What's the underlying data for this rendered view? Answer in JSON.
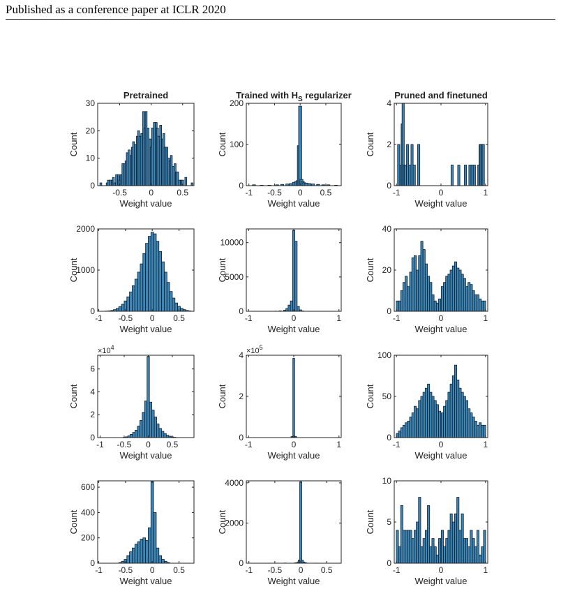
{
  "header": {
    "running_title": "Published as a conference paper at ICLR 2020"
  },
  "chart_data": [
    {
      "type": "bar",
      "title": "Pretrained",
      "xlabel": "Weight value",
      "ylabel": "Count",
      "xlim": [
        -0.85,
        0.68
      ],
      "ylim": [
        0,
        30
      ],
      "xticks": [
        -0.5,
        0,
        0.5
      ],
      "yticks": [
        0,
        10,
        20,
        30
      ],
      "exponent": "",
      "centers": [
        -0.8,
        -0.7,
        -0.68,
        -0.65,
        -0.62,
        -0.6,
        -0.58,
        -0.55,
        -0.52,
        -0.5,
        -0.48,
        -0.45,
        -0.42,
        -0.4,
        -0.38,
        -0.35,
        -0.32,
        -0.3,
        -0.28,
        -0.25,
        -0.22,
        -0.2,
        -0.18,
        -0.15,
        -0.12,
        -0.1,
        -0.08,
        -0.05,
        -0.02,
        0.0,
        0.02,
        0.05,
        0.08,
        0.1,
        0.12,
        0.15,
        0.18,
        0.2,
        0.22,
        0.25,
        0.28,
        0.3,
        0.32,
        0.35,
        0.38,
        0.4,
        0.42,
        0.45,
        0.48,
        0.5,
        0.55,
        0.65
      ],
      "values": [
        1,
        1,
        2,
        2,
        2,
        3,
        1,
        4,
        4,
        2,
        4,
        8,
        8,
        9,
        12,
        13,
        11,
        14,
        16,
        15,
        18,
        20,
        18,
        19,
        27,
        21,
        27,
        21,
        17,
        14,
        21,
        23,
        23,
        21,
        18,
        22,
        17,
        19,
        14,
        14,
        10,
        9,
        11,
        7,
        8,
        5,
        5,
        2,
        2,
        2,
        3,
        1
      ]
    },
    {
      "type": "bar",
      "title": "Trained with H",
      "title_sub": "S",
      "title_tail": "regularizer",
      "xlabel": "Weight value",
      "ylabel": "Count",
      "xlim": [
        -1.05,
        0.8
      ],
      "ylim": [
        0,
        200
      ],
      "xticks": [
        -1,
        -0.5,
        0,
        0.5
      ],
      "yticks": [
        0,
        100,
        200
      ],
      "exponent": "",
      "centers": [
        -0.9,
        -0.75,
        -0.6,
        -0.45,
        -0.35,
        -0.25,
        -0.18,
        -0.12,
        -0.08,
        -0.05,
        -0.025,
        0.0,
        0.025,
        0.05,
        0.08,
        0.12,
        0.18,
        0.25,
        0.35,
        0.45,
        0.55,
        0.7
      ],
      "values": [
        2,
        1,
        1,
        2,
        3,
        4,
        5,
        8,
        10,
        12,
        97,
        193,
        15,
        10,
        7,
        6,
        5,
        4,
        3,
        2,
        2,
        1
      ]
    },
    {
      "type": "bar",
      "title": "Pruned and finetuned",
      "xlabel": "Weight value",
      "ylabel": "Count",
      "xlim": [
        -1.05,
        1.05
      ],
      "ylim": [
        0,
        4
      ],
      "xticks": [
        -1,
        0,
        1
      ],
      "yticks": [
        0,
        2,
        4
      ],
      "exponent": "",
      "centers": [
        -0.95,
        -0.9,
        -0.87,
        -0.85,
        -0.82,
        -0.8,
        -0.75,
        -0.7,
        -0.65,
        -0.6,
        -0.5,
        0.25,
        0.4,
        0.55,
        0.65,
        0.7,
        0.75,
        0.85,
        0.88,
        0.9,
        0.93,
        0.95
      ],
      "values": [
        2,
        1,
        3,
        4,
        1,
        1,
        2,
        1,
        2,
        1,
        2,
        1,
        1,
        1,
        1,
        1,
        1,
        1,
        2,
        2,
        2,
        2
      ]
    },
    {
      "type": "bar",
      "title": "",
      "xlabel": "Weight value",
      "ylabel": "Count",
      "xlim": [
        -1.02,
        0.78
      ],
      "ylim": [
        0,
        2000
      ],
      "xticks": [
        -1,
        -0.5,
        0,
        0.5
      ],
      "yticks": [
        0,
        1000,
        2000
      ],
      "exponent": "",
      "centers": [
        -0.9,
        -0.85,
        -0.8,
        -0.75,
        -0.7,
        -0.65,
        -0.6,
        -0.55,
        -0.5,
        -0.45,
        -0.4,
        -0.35,
        -0.3,
        -0.25,
        -0.2,
        -0.15,
        -0.1,
        -0.05,
        0.0,
        0.05,
        0.1,
        0.15,
        0.2,
        0.25,
        0.3,
        0.35,
        0.4,
        0.45,
        0.5,
        0.55,
        0.6,
        0.65,
        0.7
      ],
      "values": [
        2,
        5,
        10,
        20,
        40,
        70,
        110,
        170,
        250,
        350,
        470,
        620,
        780,
        950,
        1150,
        1400,
        1650,
        1820,
        1920,
        1880,
        1700,
        1450,
        1200,
        950,
        700,
        480,
        320,
        200,
        120,
        70,
        40,
        20,
        10
      ]
    },
    {
      "type": "bar",
      "title": "",
      "xlabel": "Weight value",
      "ylabel": "Count",
      "xlim": [
        -1.05,
        1.05
      ],
      "ylim": [
        0,
        12000
      ],
      "xticks": [
        -1,
        0,
        1
      ],
      "yticks": [
        0,
        5000,
        10000
      ],
      "exponent": "",
      "centers": [
        -0.4,
        -0.3,
        -0.2,
        -0.15,
        -0.1,
        -0.05,
        0.0,
        0.05,
        0.1,
        0.15,
        0.2
      ],
      "values": [
        20,
        60,
        150,
        400,
        900,
        1500,
        11800,
        10200,
        700,
        200,
        40
      ]
    },
    {
      "type": "bar",
      "title": "",
      "xlabel": "Weight value",
      "ylabel": "Count",
      "xlim": [
        -1.05,
        1.05
      ],
      "ylim": [
        0,
        40
      ],
      "xticks": [
        -1,
        0,
        1
      ],
      "yticks": [
        0,
        20,
        40
      ],
      "exponent": "",
      "centers": [
        -0.98,
        -0.93,
        -0.88,
        -0.83,
        -0.78,
        -0.73,
        -0.68,
        -0.63,
        -0.58,
        -0.53,
        -0.48,
        -0.43,
        -0.38,
        -0.33,
        -0.28,
        -0.23,
        -0.18,
        -0.13,
        -0.08,
        -0.03,
        0.03,
        0.08,
        0.13,
        0.18,
        0.23,
        0.28,
        0.33,
        0.38,
        0.43,
        0.48,
        0.53,
        0.58,
        0.63,
        0.68,
        0.73,
        0.78,
        0.83,
        0.88,
        0.93,
        0.98
      ],
      "values": [
        5,
        5,
        10,
        14,
        17,
        12,
        19,
        26,
        27,
        20,
        27,
        34,
        30,
        23,
        17,
        14,
        8,
        5,
        4,
        6,
        12,
        14,
        17,
        18,
        20,
        22,
        24,
        21,
        20,
        18,
        16,
        12,
        14,
        13,
        10,
        8,
        8,
        6,
        5,
        5
      ]
    },
    {
      "type": "bar",
      "title": "",
      "xlabel": "Weight value",
      "ylabel": "Count",
      "xlim": [
        -1.05,
        0.95
      ],
      "ylim": [
        0,
        72000
      ],
      "xticks": [
        -1,
        -0.5,
        0,
        0.5
      ],
      "yticks": [
        0,
        20000,
        40000,
        60000
      ],
      "ytick_labels": [
        "0",
        "2",
        "4",
        "6"
      ],
      "exponent": "4",
      "centers": [
        -0.5,
        -0.45,
        -0.4,
        -0.35,
        -0.3,
        -0.25,
        -0.2,
        -0.15,
        -0.1,
        -0.05,
        0.0,
        0.05,
        0.1,
        0.15,
        0.2,
        0.25,
        0.3,
        0.35,
        0.4,
        0.45,
        0.5,
        0.55
      ],
      "values": [
        300,
        700,
        1500,
        2800,
        4500,
        6500,
        10000,
        15000,
        22000,
        32000,
        71000,
        31000,
        24000,
        18000,
        12000,
        8000,
        5500,
        3500,
        2000,
        1200,
        600,
        300
      ]
    },
    {
      "type": "bar",
      "title": "",
      "xlabel": "Weight value",
      "ylabel": "Count",
      "xlim": [
        -1.05,
        1.05
      ],
      "ylim": [
        0,
        400000
      ],
      "xticks": [
        -1,
        0,
        1
      ],
      "yticks": [
        0,
        200000,
        400000
      ],
      "ytick_labels": [
        "0",
        "2",
        "4"
      ],
      "exponent": "5",
      "centers": [
        -0.04,
        0.0,
        0.04
      ],
      "values": [
        5000,
        385000,
        6000
      ]
    },
    {
      "type": "bar",
      "title": "",
      "xlabel": "Weight value",
      "ylabel": "Count",
      "xlim": [
        -1.05,
        1.05
      ],
      "ylim": [
        0,
        100
      ],
      "xticks": [
        -1,
        0,
        1
      ],
      "yticks": [
        0,
        50,
        100
      ],
      "exponent": "",
      "centers": [
        -0.98,
        -0.93,
        -0.88,
        -0.83,
        -0.78,
        -0.73,
        -0.68,
        -0.63,
        -0.58,
        -0.53,
        -0.48,
        -0.43,
        -0.38,
        -0.33,
        -0.28,
        -0.23,
        -0.18,
        -0.13,
        -0.08,
        -0.03,
        0.03,
        0.08,
        0.13,
        0.18,
        0.23,
        0.28,
        0.33,
        0.38,
        0.43,
        0.48,
        0.53,
        0.58,
        0.63,
        0.68,
        0.73,
        0.78,
        0.83,
        0.88,
        0.93,
        0.98
      ],
      "values": [
        5,
        8,
        12,
        15,
        18,
        20,
        25,
        30,
        38,
        35,
        45,
        50,
        55,
        60,
        65,
        55,
        50,
        45,
        40,
        32,
        30,
        38,
        45,
        55,
        65,
        75,
        88,
        70,
        60,
        55,
        50,
        45,
        35,
        30,
        25,
        20,
        15,
        18,
        15,
        15
      ]
    },
    {
      "type": "bar",
      "title": "",
      "xlabel": "Weight value",
      "ylabel": "Count",
      "xlim": [
        -1.02,
        0.78
      ],
      "ylim": [
        0,
        650
      ],
      "xticks": [
        -1,
        -0.5,
        0,
        0.5
      ],
      "yticks": [
        0,
        200,
        400,
        600
      ],
      "exponent": "",
      "centers": [
        -0.6,
        -0.55,
        -0.5,
        -0.45,
        -0.4,
        -0.35,
        -0.3,
        -0.25,
        -0.2,
        -0.15,
        -0.1,
        -0.05,
        0.0,
        0.05,
        0.1,
        0.15,
        0.2,
        0.25,
        0.3
      ],
      "values": [
        5,
        15,
        30,
        60,
        90,
        120,
        150,
        170,
        190,
        200,
        180,
        280,
        650,
        400,
        120,
        60,
        30,
        15,
        5
      ]
    },
    {
      "type": "bar",
      "title": "",
      "xlabel": "Weight value",
      "ylabel": "Count",
      "xlim": [
        -1.05,
        0.78
      ],
      "ylim": [
        0,
        4100
      ],
      "xticks": [
        -1,
        -0.5,
        0,
        0.5
      ],
      "yticks": [
        0,
        2000,
        4000
      ],
      "exponent": "",
      "centers": [
        -0.6,
        -0.3,
        -0.1,
        -0.05,
        -0.03,
        0.0,
        0.03,
        0.06,
        0.1,
        0.3
      ],
      "values": [
        5,
        10,
        20,
        60,
        150,
        4050,
        150,
        60,
        20,
        5
      ]
    },
    {
      "type": "bar",
      "title": "",
      "xlabel": "Weight value",
      "ylabel": "Count",
      "xlim": [
        -1.05,
        1.05
      ],
      "ylim": [
        0,
        10
      ],
      "xticks": [
        -1,
        0,
        1
      ],
      "yticks": [
        0,
        5,
        10
      ],
      "exponent": "",
      "centers": [
        -0.98,
        -0.93,
        -0.88,
        -0.83,
        -0.78,
        -0.73,
        -0.68,
        -0.63,
        -0.58,
        -0.53,
        -0.48,
        -0.43,
        -0.38,
        -0.33,
        -0.28,
        -0.23,
        -0.18,
        -0.13,
        -0.08,
        -0.03,
        0.03,
        0.08,
        0.13,
        0.18,
        0.23,
        0.28,
        0.33,
        0.38,
        0.43,
        0.48,
        0.53,
        0.58,
        0.63,
        0.68,
        0.73,
        0.78,
        0.83,
        0.88,
        0.93,
        0.98
      ],
      "values": [
        4,
        2,
        7,
        4,
        4,
        4,
        4,
        3,
        4,
        5,
        8,
        2,
        3,
        4,
        7,
        2,
        3,
        2,
        1,
        3,
        4,
        2,
        3,
        4,
        6,
        5,
        6,
        8,
        4,
        6,
        3,
        3,
        2,
        4,
        3,
        2,
        4,
        1,
        2,
        4
      ]
    }
  ]
}
